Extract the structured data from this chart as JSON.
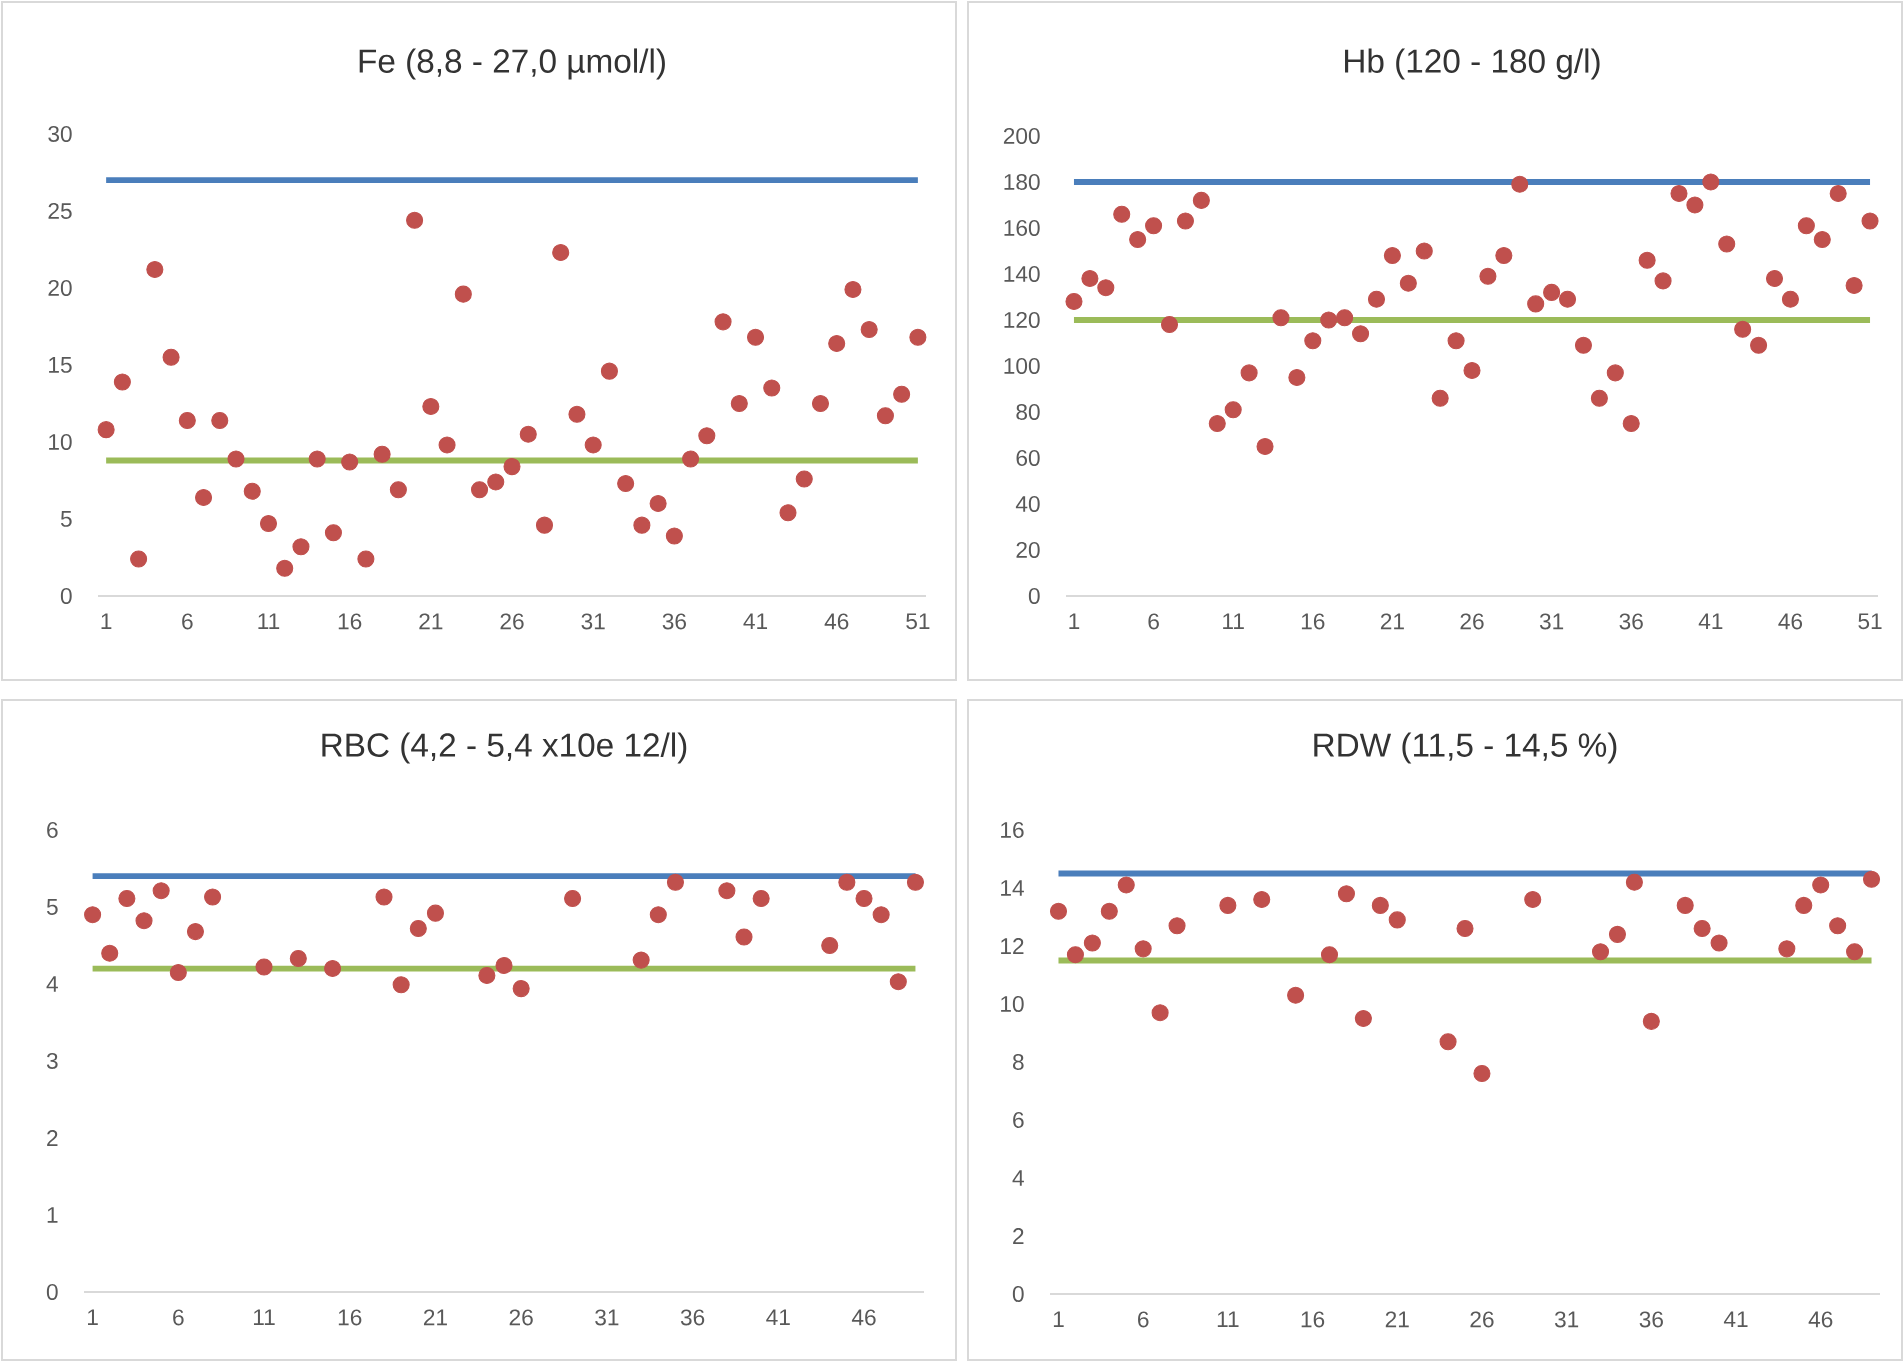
{
  "chart_data": [
    {
      "type": "scatter",
      "title": "Fe (8,8 - 27,0 µmol/l)",
      "marker": "circle",
      "grid": false,
      "series": [
        {
          "color": "#c0504d",
          "x": [
            1,
            2,
            3,
            4,
            5,
            6,
            7,
            8,
            9,
            10,
            11,
            12,
            13,
            14,
            15,
            16,
            17,
            18,
            19,
            20,
            21,
            22,
            23,
            24,
            25,
            26,
            27,
            28,
            29,
            30,
            31,
            32,
            33,
            34,
            35,
            36,
            37,
            38,
            39,
            40,
            41,
            42,
            43,
            44,
            45,
            46,
            47,
            48,
            49,
            50,
            51
          ],
          "values": [
            10.8,
            13.9,
            2.4,
            21.2,
            15.5,
            11.4,
            6.4,
            11.4,
            8.9,
            6.8,
            4.7,
            1.8,
            3.2,
            8.9,
            4.1,
            8.7,
            2.4,
            9.2,
            6.9,
            24.4,
            12.3,
            9.8,
            19.6,
            6.9,
            7.4,
            8.4,
            10.5,
            4.6,
            22.3,
            11.8,
            9.8,
            14.6,
            7.3,
            4.6,
            6.0,
            3.9,
            8.9,
            10.4,
            17.8,
            12.5,
            16.8,
            13.5,
            5.4,
            7.6,
            12.5,
            16.4,
            19.9,
            17.3,
            11.7,
            13.1,
            16.8
          ]
        }
      ],
      "xlim": [
        0.5,
        51.5
      ],
      "xticks": [
        1,
        6,
        11,
        16,
        21,
        26,
        31,
        36,
        41,
        46,
        51
      ],
      "ylim": [
        0,
        30
      ],
      "yticks": [
        0,
        5,
        10,
        15,
        20,
        25,
        30
      ],
      "ref_lines": [
        {
          "axis": "y",
          "value": 27.0,
          "color": "#4a7ebb"
        },
        {
          "axis": "y",
          "value": 8.8,
          "color": "#9bbb59"
        }
      ]
    },
    {
      "type": "scatter",
      "title": "Hb (120 - 180 g/l)",
      "marker": "circle",
      "grid": false,
      "series": [
        {
          "color": "#c0504d",
          "x": [
            1,
            2,
            3,
            4,
            5,
            6,
            7,
            8,
            9,
            10,
            11,
            12,
            13,
            14,
            15,
            16,
            17,
            18,
            19,
            20,
            21,
            22,
            23,
            24,
            25,
            26,
            27,
            28,
            29,
            30,
            31,
            32,
            33,
            34,
            35,
            36,
            37,
            38,
            39,
            40,
            41,
            42,
            43,
            44,
            45,
            46,
            47,
            48,
            49,
            50,
            51
          ],
          "values": [
            128,
            138,
            134,
            166,
            155,
            161,
            118,
            163,
            172,
            75,
            81,
            97,
            65,
            121,
            95,
            111,
            120,
            121,
            114,
            129,
            148,
            136,
            150,
            86,
            111,
            98,
            139,
            148,
            179,
            127,
            132,
            129,
            109,
            86,
            97,
            75,
            146,
            137,
            175,
            170,
            180,
            153,
            116,
            109,
            138,
            129,
            161,
            155,
            175,
            135,
            163
          ]
        }
      ],
      "xlim": [
        0.5,
        51.5
      ],
      "xticks": [
        1,
        6,
        11,
        16,
        21,
        26,
        31,
        36,
        41,
        46,
        51
      ],
      "ylim": [
        0,
        200
      ],
      "yticks": [
        0,
        20,
        40,
        60,
        80,
        100,
        120,
        140,
        160,
        180,
        200
      ],
      "ref_lines": [
        {
          "axis": "y",
          "value": 180,
          "color": "#4a7ebb"
        },
        {
          "axis": "y",
          "value": 120,
          "color": "#9bbb59"
        }
      ]
    },
    {
      "type": "scatter",
      "title": "RBC (4,2 - 5,4 x10e 12/l)",
      "marker": "circle",
      "grid": false,
      "series": [
        {
          "color": "#c0504d",
          "x": [
            1,
            2,
            3,
            4,
            5,
            6,
            7,
            8,
            11,
            13,
            15,
            18,
            19,
            20,
            21,
            24,
            25,
            26,
            29,
            33,
            34,
            35,
            38,
            39,
            40,
            44,
            45,
            46,
            47,
            48,
            49
          ],
          "values": [
            4.9,
            4.4,
            5.11,
            4.82,
            5.21,
            4.15,
            4.68,
            5.13,
            4.22,
            4.33,
            4.2,
            5.13,
            3.99,
            4.72,
            4.92,
            4.11,
            4.24,
            3.94,
            5.11,
            4.31,
            4.9,
            5.32,
            5.21,
            4.61,
            5.11,
            4.5,
            5.32,
            5.11,
            4.9,
            4.03,
            5.32
          ]
        }
      ],
      "xlim": [
        0.5,
        49.5
      ],
      "xticks": [
        1,
        6,
        11,
        16,
        21,
        26,
        31,
        36,
        41,
        46
      ],
      "ylim": [
        0,
        6
      ],
      "yticks": [
        0,
        1,
        2,
        3,
        4,
        5,
        6
      ],
      "ref_lines": [
        {
          "axis": "y",
          "value": 5.4,
          "color": "#4a7ebb"
        },
        {
          "axis": "y",
          "value": 4.2,
          "color": "#9bbb59"
        }
      ]
    },
    {
      "type": "scatter",
      "title": "RDW (11,5 - 14,5 %)",
      "marker": "circle",
      "grid": false,
      "series": [
        {
          "color": "#c0504d",
          "x": [
            1,
            2,
            3,
            4,
            5,
            6,
            7,
            8,
            11,
            13,
            15,
            17,
            18,
            19,
            20,
            21,
            24,
            25,
            26,
            29,
            33,
            34,
            35,
            36,
            38,
            39,
            40,
            44,
            45,
            46,
            47,
            48,
            49
          ],
          "values": [
            13.2,
            11.7,
            12.1,
            13.2,
            14.1,
            11.9,
            9.7,
            12.7,
            13.4,
            13.6,
            10.3,
            11.7,
            13.8,
            9.5,
            13.4,
            12.9,
            8.7,
            12.6,
            7.6,
            13.6,
            11.8,
            12.4,
            14.2,
            9.4,
            13.4,
            12.6,
            12.1,
            11.9,
            13.4,
            14.1,
            12.7,
            11.8,
            14.3
          ]
        }
      ],
      "xlim": [
        0.5,
        49.5
      ],
      "xticks": [
        1,
        6,
        11,
        16,
        21,
        26,
        31,
        36,
        41,
        46
      ],
      "ylim": [
        0,
        16
      ],
      "yticks": [
        0,
        2,
        4,
        6,
        8,
        10,
        12,
        14,
        16
      ],
      "ref_lines": [
        {
          "axis": "y",
          "value": 14.5,
          "color": "#4a7ebb"
        },
        {
          "axis": "y",
          "value": 11.5,
          "color": "#9bbb59"
        }
      ]
    }
  ]
}
